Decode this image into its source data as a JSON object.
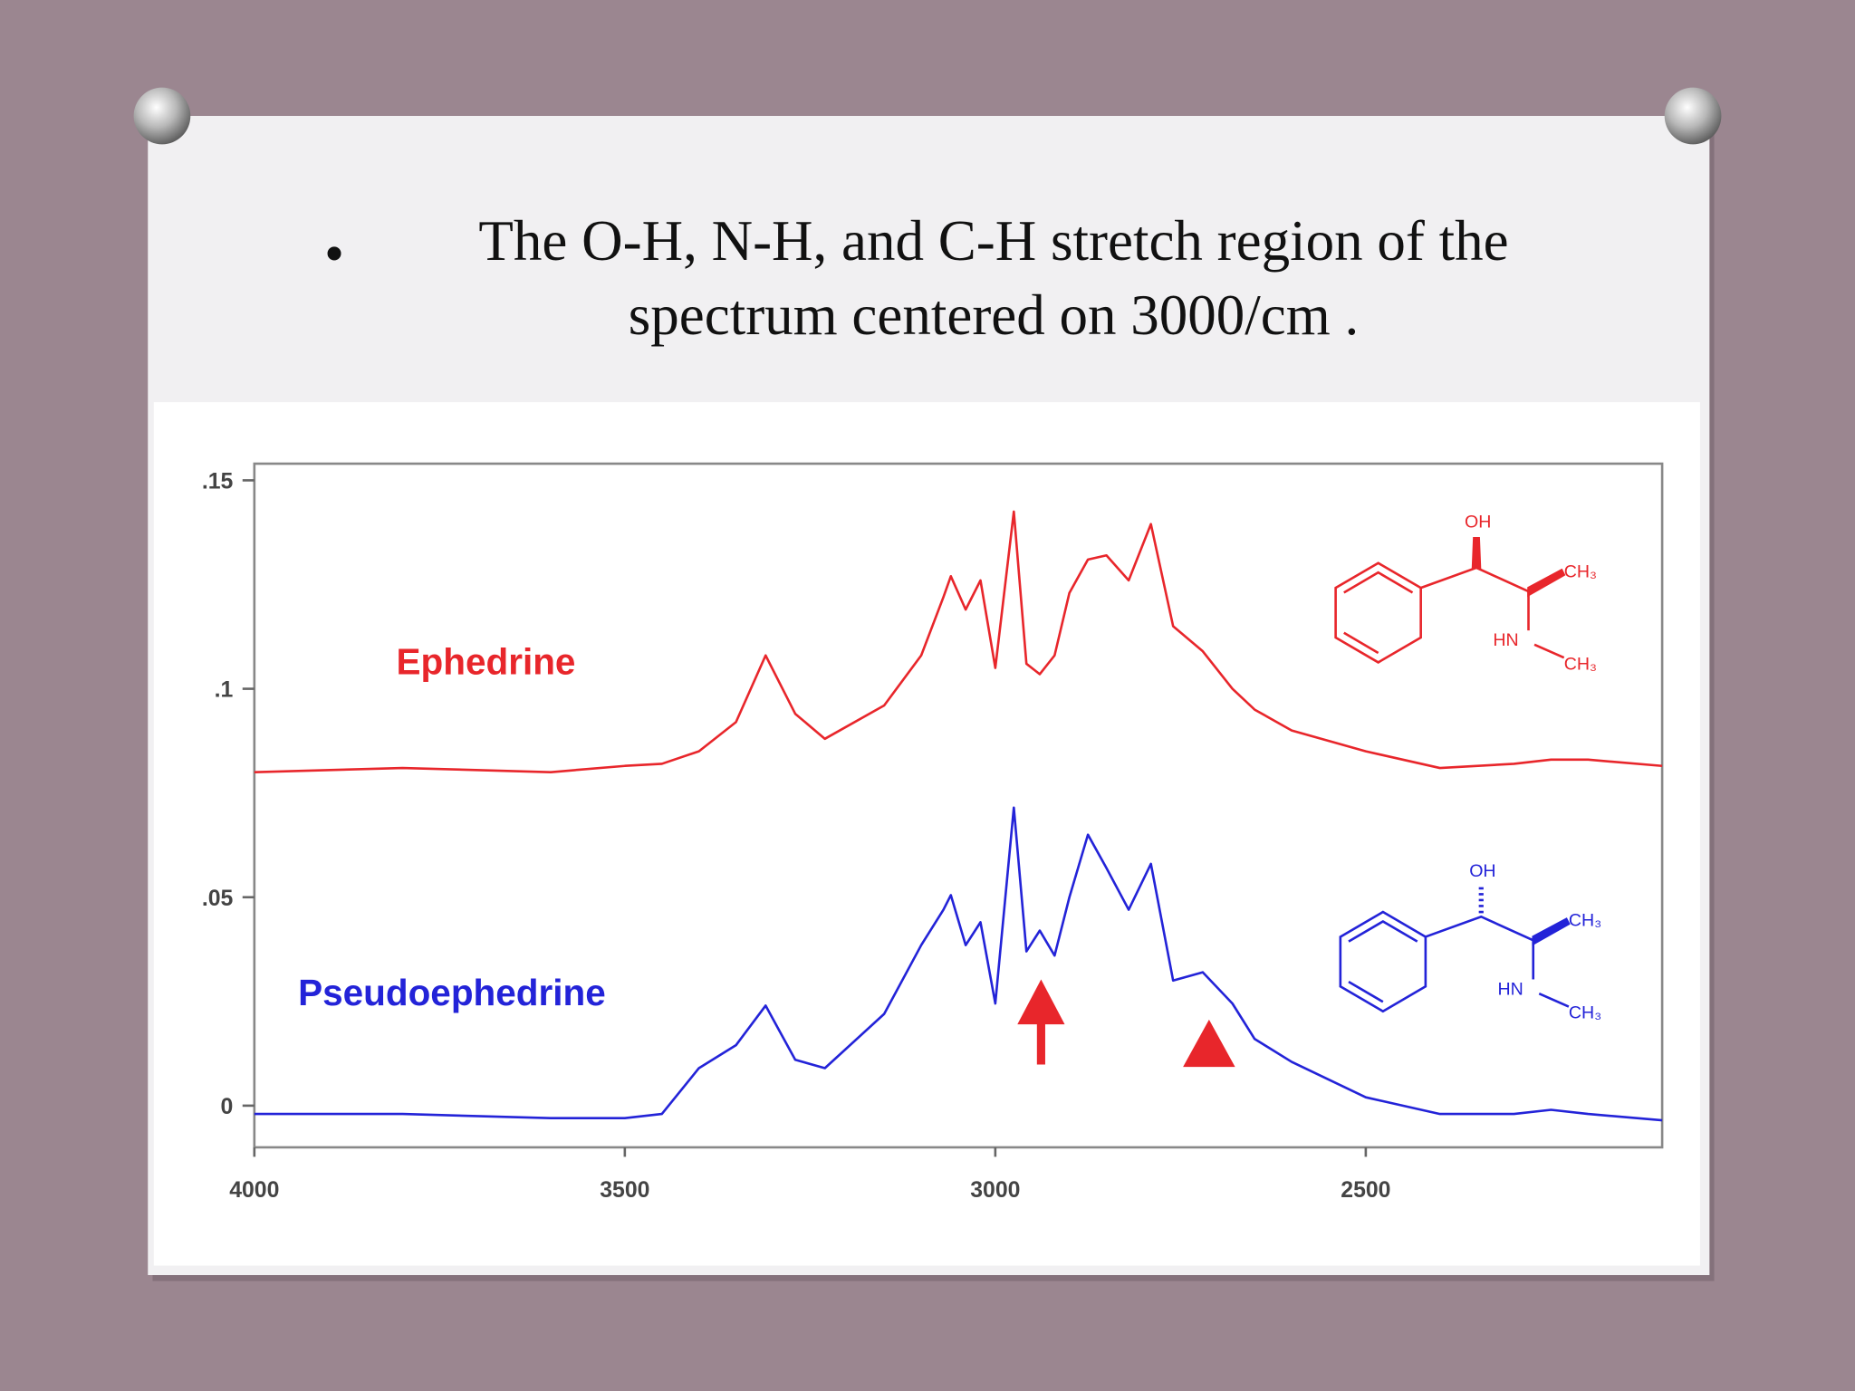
{
  "title": "The O-H, N-H, and C-H stretch region of the spectrum centered on 3000/cm .",
  "chart_data": {
    "type": "line",
    "x": [
      4000,
      3800,
      3600,
      3500,
      3450,
      3400,
      3350,
      3310,
      3270,
      3230,
      3150,
      3100,
      3070,
      3060,
      3040,
      3020,
      3000,
      2975,
      2958,
      2940,
      2920,
      2900,
      2875,
      2850,
      2820,
      2790,
      2760,
      2720,
      2680,
      2650,
      2600,
      2500,
      2400,
      2300,
      2250,
      2200,
      2100
    ],
    "series": [
      {
        "name": "Ephedrine",
        "color": "#e8262b",
        "values": [
          0.08,
          0.081,
          0.08,
          0.0815,
          0.082,
          0.085,
          0.092,
          0.108,
          0.094,
          0.088,
          0.096,
          0.108,
          0.122,
          0.127,
          0.119,
          0.126,
          0.105,
          0.1425,
          0.106,
          0.1035,
          0.108,
          0.123,
          0.131,
          0.132,
          0.126,
          0.1395,
          0.115,
          0.109,
          0.1,
          0.095,
          0.09,
          0.085,
          0.081,
          0.082,
          0.083,
          0.083,
          0.0815
        ]
      },
      {
        "name": "Pseudoephedrine",
        "color": "#2323d8",
        "values": [
          -0.002,
          -0.002,
          -0.003,
          -0.003,
          -0.002,
          0.009,
          0.0145,
          0.024,
          0.011,
          0.009,
          0.022,
          0.0385,
          0.047,
          0.0505,
          0.0385,
          0.044,
          0.0245,
          0.0715,
          0.037,
          0.042,
          0.036,
          0.05,
          0.065,
          0.057,
          0.047,
          0.058,
          0.03,
          0.032,
          0.0245,
          0.016,
          0.0105,
          0.002,
          -0.002,
          -0.002,
          -0.001,
          -0.002,
          -0.0035
        ]
      }
    ],
    "xlim": [
      4000,
      2100
    ],
    "xticks": [
      4000,
      3500,
      3000,
      2500
    ],
    "ylim": [
      -0.01,
      0.154
    ],
    "yticks": [
      {
        "value": 0.15,
        "label": ".15"
      },
      {
        "value": 0.1,
        "label": ".1"
      },
      {
        "value": 0.05,
        "label": ".05"
      },
      0
    ],
    "molecules": [
      [
        "OH",
        "CH₃",
        "HN",
        "CH₃"
      ],
      [
        "OH",
        "CH₃",
        "HN",
        "CH₃"
      ]
    ]
  }
}
